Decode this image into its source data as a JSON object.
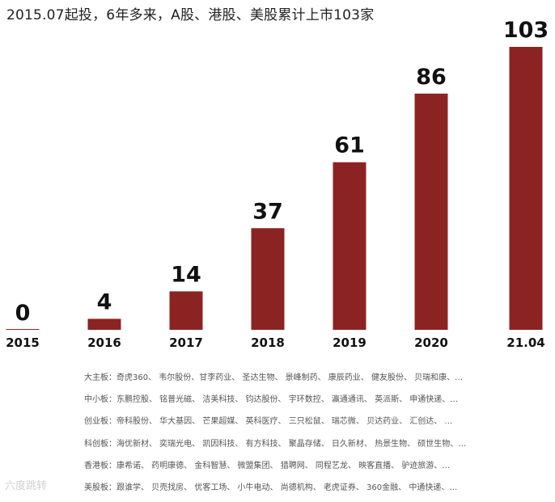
{
  "title": "2015.07起投，6年多来，A股、港股、美股累计上市103家",
  "chart_data": {
    "type": "bar",
    "title": "2015.07起投，6年多来，A股、港股、美股累计上市103家",
    "categories": [
      "2015",
      "2016",
      "2017",
      "2018",
      "2019",
      "2020",
      "21.04"
    ],
    "values": [
      0,
      4,
      14,
      37,
      61,
      86,
      103
    ],
    "ylim": [
      0,
      103
    ],
    "bar_color": "#8B2323",
    "grid": false,
    "legend": "none"
  },
  "boards": [
    {
      "label": "大主板：",
      "companies": "奇虎360、 韦尔股份、甘李药业、 圣达生物、 景峰制药、 康辰药业、 健友股份、 贝瑞和康、…"
    },
    {
      "label": "中小板：",
      "companies": "东鹏控股、 铭普光磁、 洁美科技、 钧达股份、 宇环数控、 瀛通通讯、 英派斯、 申通快递、…"
    },
    {
      "label": "创业板：",
      "companies": "帝科股份、 华大基因、 芒果超媒、 英科医疗、 三只松鼠、 瑞芯微、 贝达药业、 汇创达、 …"
    },
    {
      "label": "科创板：",
      "companies": "海优新材、 奕瑞光电、 凯因科技、 有方科技、 聚晶存储、 日久新材、 热景生物、 硕世生物、…"
    },
    {
      "label": "香港板：",
      "companies": "康希诺、 药明康德、 金科智慧、 微盟集团、 猎聘网、 同程艺龙、 映客直播、 驴迹旅游、…"
    },
    {
      "label": "美股板：",
      "companies": "跟谁学、 贝壳找房、 优客工场、 小牛电动、 尚德机构、 老虎证券、 360金融、 中通快递、…"
    }
  ],
  "watermark": "六度跳转"
}
